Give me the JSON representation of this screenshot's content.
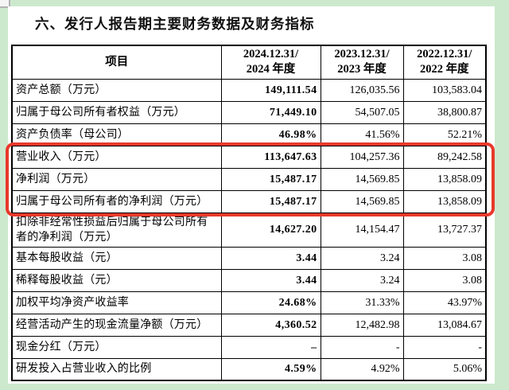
{
  "document": {
    "title": "六、发行人报告期主要财务数据及财务指标"
  },
  "colors": {
    "outer_background": "#cde9cd",
    "page_background": "#ffffff",
    "table_border": "#000000",
    "highlight_box_border": "#e8392b"
  },
  "table": {
    "columns": [
      {
        "label": "项目"
      },
      {
        "line1": "2024.12.31/",
        "line2": "2024 年度"
      },
      {
        "line1": "2023.12.31/",
        "line2": "2023 年度"
      },
      {
        "line1": "2022.12.31/",
        "line2": "2022 年度"
      }
    ],
    "rows": [
      {
        "label": "资产总额（万元）",
        "values": [
          "149,111.54",
          "126,035.56",
          "103,583.04"
        ]
      },
      {
        "label": "归属于母公司所有者权益（万元）",
        "values": [
          "71,449.10",
          "54,507.05",
          "38,800.87"
        ]
      },
      {
        "label": "资产负债率（母公司）",
        "values": [
          "46.98%",
          "41.56%",
          "52.21%"
        ]
      },
      {
        "label": "营业收入（万元）",
        "values": [
          "113,647.63",
          "104,257.36",
          "89,242.58"
        ],
        "highlighted": true
      },
      {
        "label": "净利润（万元）",
        "values": [
          "15,487.17",
          "14,569.85",
          "13,858.09"
        ],
        "highlighted": true
      },
      {
        "label": "归属于母公司所有者的净利润（万元）",
        "values": [
          "15,487.17",
          "14,569.85",
          "13,858.09"
        ],
        "highlighted": true
      },
      {
        "label": "扣除非经常性损益后归属于母公司所有者的净利润（万元）",
        "values": [
          "14,627.20",
          "14,154.47",
          "13,727.37"
        ]
      },
      {
        "label": "基本每股收益（元）",
        "values": [
          "3.44",
          "3.24",
          "3.08"
        ]
      },
      {
        "label": "稀释每股收益（元）",
        "values": [
          "3.44",
          "3.24",
          "3.08"
        ]
      },
      {
        "label": "加权平均净资产收益率",
        "values": [
          "24.68%",
          "31.33%",
          "43.97%"
        ]
      },
      {
        "label": "经营活动产生的现金流量净额（万元）",
        "values": [
          "4,360.52",
          "12,482.98",
          "13,084.67"
        ]
      },
      {
        "label": "现金分红（万元）",
        "values": [
          "–",
          "-",
          "-"
        ]
      },
      {
        "label": "研发投入占营业收入的比例",
        "values": [
          "4.59%",
          "4.92%",
          "5.06%"
        ]
      }
    ]
  }
}
